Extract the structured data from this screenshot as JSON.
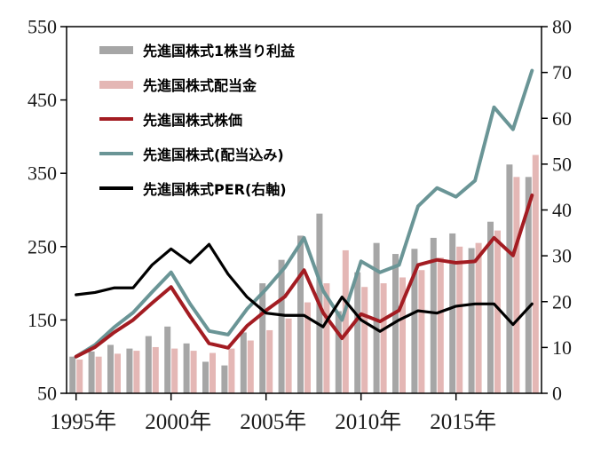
{
  "chart_data": {
    "type": "combo-bar-line",
    "x": [
      1995,
      1996,
      1997,
      1998,
      1999,
      2000,
      2001,
      2002,
      2003,
      2004,
      2005,
      2006,
      2007,
      2008,
      2009,
      2010,
      2011,
      2012,
      2013,
      2014,
      2015,
      2016,
      2017,
      2018,
      2019
    ],
    "x_tick_positions": [
      1995,
      2000,
      2005,
      2010,
      2015
    ],
    "x_tick_labels": [
      "1995年",
      "2000年",
      "2005年",
      "2010年",
      "2015年"
    ],
    "left_axis": {
      "min": 50,
      "max": 550,
      "ticks": [
        550,
        450,
        350,
        250,
        150,
        50
      ],
      "tick_labels": [
        "550",
        "450",
        "350",
        "250",
        "150",
        "50"
      ]
    },
    "right_axis": {
      "min": 0,
      "max": 80,
      "ticks": [
        80,
        70,
        60,
        50,
        40,
        30,
        20,
        10,
        0
      ],
      "tick_labels": [
        "80",
        "70",
        "60",
        "50",
        "40",
        "30",
        "20",
        "10",
        "0"
      ]
    },
    "grid": false,
    "legend_position": "top-left-inside",
    "series": [
      {
        "name": "先進国株式1株当り利益",
        "type": "bar",
        "axis": "left",
        "color": "#a6a6a6",
        "values": [
          100,
          107,
          116,
          111,
          128,
          141,
          118,
          93,
          88,
          133,
          200,
          232,
          265,
          295,
          162,
          215,
          255,
          240,
          247,
          262,
          268,
          248,
          284,
          362,
          345
        ]
      },
      {
        "name": "先進国株式配当金",
        "type": "bar",
        "axis": "left",
        "color": "#e4b7b5",
        "values": [
          96,
          100,
          104,
          108,
          113,
          111,
          108,
          105,
          111,
          122,
          136,
          152,
          174,
          200,
          245,
          195,
          200,
          208,
          218,
          235,
          250,
          255,
          272,
          345,
          375
        ]
      },
      {
        "name": "先進国株式株価",
        "type": "line",
        "axis": "left",
        "color": "#a31c22",
        "values": [
          100,
          113,
          133,
          150,
          173,
          195,
          155,
          118,
          112,
          142,
          163,
          182,
          218,
          160,
          125,
          158,
          148,
          163,
          225,
          232,
          228,
          230,
          262,
          238,
          320
        ]
      },
      {
        "name": "先進国株式(配当込み)",
        "type": "line",
        "axis": "left",
        "color": "#6a9596",
        "values": [
          100,
          116,
          140,
          160,
          188,
          215,
          172,
          135,
          130,
          165,
          192,
          222,
          262,
          190,
          150,
          230,
          215,
          225,
          305,
          330,
          318,
          340,
          440,
          410,
          490
        ]
      },
      {
        "name": "先進国株式PER(右軸)",
        "type": "line",
        "axis": "right",
        "color": "#000000",
        "values": [
          21.5,
          22,
          23,
          23,
          28,
          31.5,
          28.5,
          32.5,
          26,
          21,
          17.5,
          17,
          17,
          14.5,
          21,
          16,
          13.5,
          16,
          18,
          17.5,
          19,
          19.5,
          19.5,
          15,
          19.5
        ]
      }
    ]
  }
}
